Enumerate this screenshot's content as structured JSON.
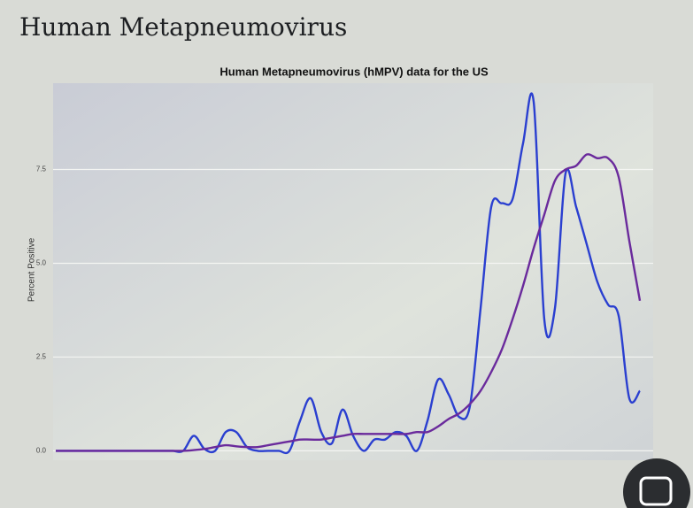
{
  "page_title": "Human Metapneumovirus",
  "chart_data": {
    "type": "line",
    "title": "Human Metapneumovirus (hMPV) data for the US",
    "y_label": "Percent Positive",
    "categories": [
      null,
      null,
      null,
      null,
      null,
      null,
      null,
      null,
      null,
      null,
      null,
      null,
      null,
      null,
      null,
      null,
      null,
      null,
      null,
      null,
      null,
      null,
      null,
      null,
      null,
      null,
      null,
      null,
      null,
      null,
      null,
      null,
      null,
      null,
      null,
      null,
      null,
      null,
      null,
      null,
      null,
      null,
      null,
      null,
      null,
      null,
      null,
      null,
      null,
      null,
      null,
      null,
      null,
      null,
      null,
      null
    ],
    "series": [
      {
        "color": "#2a3fd0",
        "values": [
          0,
          0,
          0,
          0,
          0,
          0,
          0,
          0,
          0,
          0,
          0,
          0,
          0,
          0.4,
          0.05,
          0,
          0.5,
          0.5,
          0.1,
          0,
          0,
          0,
          0,
          0.8,
          1.4,
          0.5,
          0.2,
          1.1,
          0.4,
          0,
          0.3,
          0.3,
          0.5,
          0.4,
          0,
          0.8,
          1.9,
          1.5,
          0.9,
          1.2,
          3.8,
          6.5,
          6.6,
          6.7,
          8.2,
          9.3,
          3.5,
          3.8,
          7.4,
          6.5,
          5.5,
          4.5,
          3.9,
          3.6,
          1.4,
          1.6
        ]
      },
      {
        "color": "#6a2a9c",
        "values": [
          0,
          0,
          0,
          0,
          0,
          0,
          0,
          0,
          0,
          0,
          0,
          0,
          0,
          0.02,
          0.05,
          0.1,
          0.15,
          0.12,
          0.1,
          0.1,
          0.15,
          0.2,
          0.25,
          0.3,
          0.3,
          0.3,
          0.35,
          0.4,
          0.45,
          0.45,
          0.45,
          0.45,
          0.45,
          0.45,
          0.5,
          0.5,
          0.65,
          0.85,
          1.0,
          1.25,
          1.6,
          2.1,
          2.7,
          3.5,
          4.4,
          5.4,
          6.3,
          7.2,
          7.5,
          7.6,
          7.9,
          7.8,
          7.8,
          7.3,
          5.6,
          4.0
        ]
      }
    ],
    "ylim": [
      -0.25,
      9.8
    ],
    "yticks": [
      {
        "value": 0,
        "label": "0.0"
      },
      2.5,
      {
        "value": 5,
        "label": "5.0"
      },
      7.5
    ],
    "grid": true
  }
}
